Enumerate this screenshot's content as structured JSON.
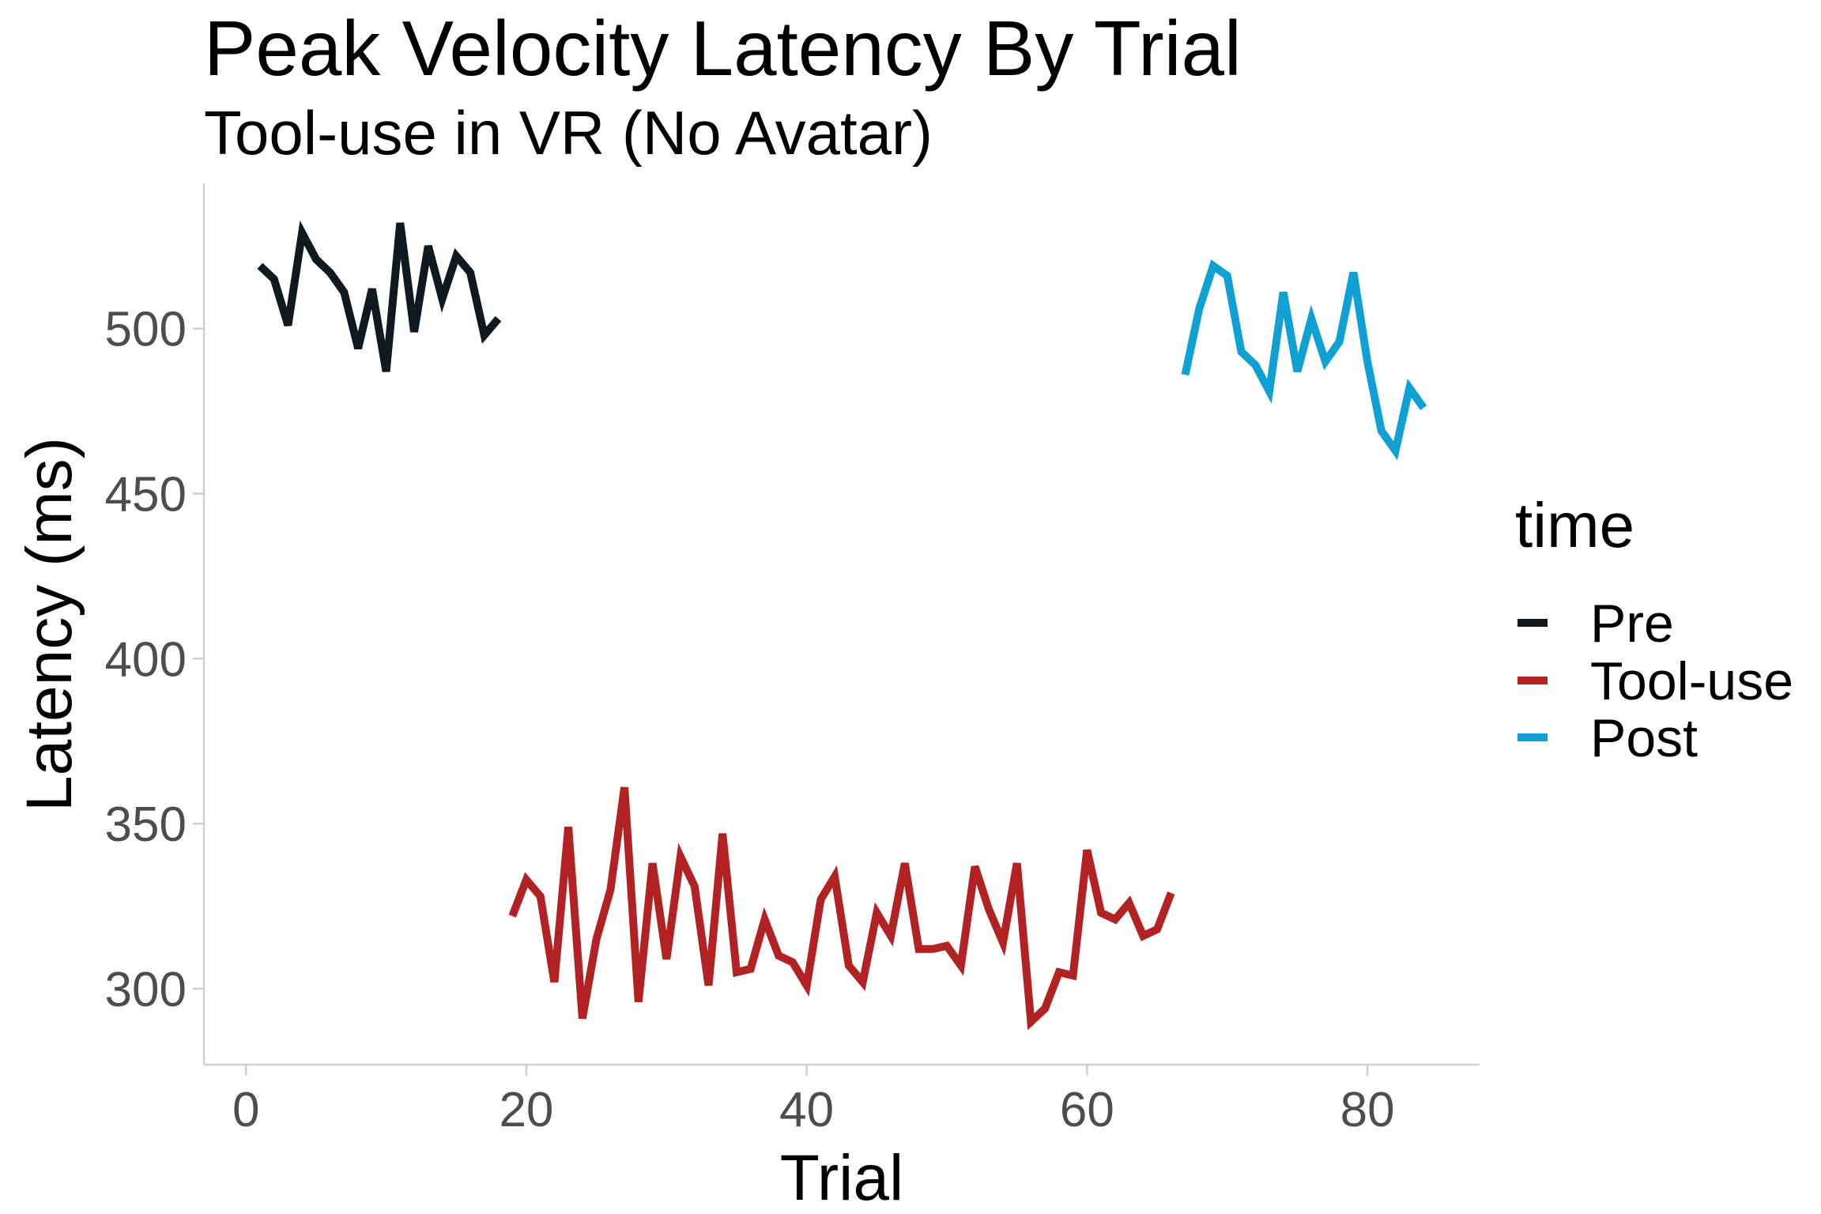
{
  "chart_data": {
    "type": "line",
    "title": "Peak Velocity Latency By Trial",
    "subtitle": "Tool-use in VR (No Avatar)",
    "xlabel": "Trial",
    "ylabel": "Latency (ms)",
    "xlim": [
      -3,
      88
    ],
    "ylim": [
      277,
      544
    ],
    "xticks": [
      0,
      20,
      40,
      60,
      80
    ],
    "yticks": [
      300,
      350,
      400,
      450,
      500
    ],
    "xtick_labels": [
      "0",
      "20",
      "40",
      "60",
      "80"
    ],
    "ytick_labels": [
      "300",
      "350",
      "400",
      "450",
      "500"
    ],
    "grid": false,
    "legend": {
      "title": "time",
      "position": "right"
    },
    "series": [
      {
        "name": "Pre",
        "color": "#0f1a20",
        "x": [
          1,
          2,
          3,
          4,
          5,
          6,
          7,
          8,
          9,
          10,
          11,
          12,
          13,
          14,
          15,
          16,
          17,
          18
        ],
        "y": [
          519,
          515,
          501,
          529,
          521,
          517,
          511,
          494,
          512,
          487,
          532,
          499,
          525,
          509,
          522,
          517,
          498,
          503
        ]
      },
      {
        "name": "Tool-use",
        "color": "#b22222",
        "x": [
          19,
          20,
          21,
          22,
          23,
          24,
          25,
          26,
          27,
          28,
          29,
          30,
          31,
          32,
          33,
          34,
          35,
          36,
          37,
          38,
          39,
          40,
          41,
          42,
          43,
          44,
          45,
          46,
          47,
          48,
          49,
          50,
          51,
          52,
          53,
          54,
          55,
          56,
          57,
          58,
          59,
          60,
          61,
          62,
          63,
          64,
          65,
          66
        ],
        "y": [
          322,
          333,
          328,
          302,
          349,
          291,
          315,
          330,
          361,
          296,
          338,
          309,
          340,
          331,
          301,
          347,
          305,
          306,
          321,
          310,
          308,
          301,
          327,
          334,
          307,
          302,
          323,
          316,
          338,
          312,
          312,
          313,
          307,
          337,
          324,
          314,
          338,
          290,
          294,
          305,
          304,
          342,
          323,
          321,
          326,
          316,
          318,
          329
        ]
      },
      {
        "name": "Post",
        "color": "#0fa0d4",
        "x": [
          67,
          68,
          69,
          70,
          71,
          72,
          73,
          74,
          75,
          76,
          77,
          78,
          79,
          80,
          81,
          82,
          83,
          84
        ],
        "y": [
          486,
          506,
          519,
          516,
          493,
          489,
          481,
          511,
          487,
          503,
          490,
          496,
          517,
          490,
          469,
          463,
          482,
          476
        ]
      }
    ]
  }
}
